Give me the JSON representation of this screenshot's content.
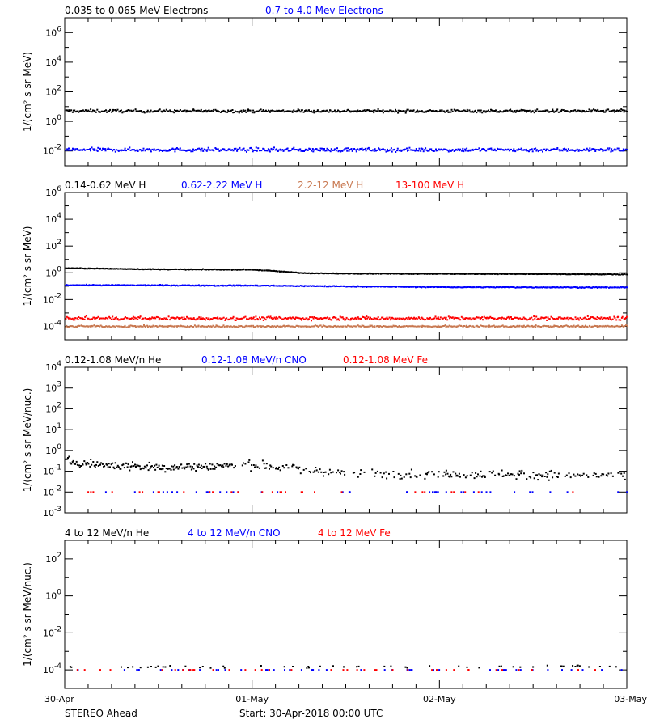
{
  "chart_data": [
    {
      "type": "scatter",
      "yscale": "log",
      "ylabel": "1/(cm² s sr MeV)",
      "ylim": [
        0.001,
        10000000
      ],
      "ytick_exponents": [
        -2,
        0,
        2,
        4,
        6
      ],
      "series": [
        {
          "name": "0.035 to 0.065 MeV Electrons",
          "color": "#000000",
          "level": 5,
          "scatter_dex": 0.12
        },
        {
          "name": "0.7 to 4.0 Mev Electrons",
          "color": "#0000ff",
          "level": 0.012,
          "scatter_dex": 0.15
        }
      ]
    },
    {
      "type": "scatter",
      "yscale": "log",
      "ylabel": "1/(cm² s sr MeV)",
      "ylim": [
        1e-05,
        1000000
      ],
      "ytick_exponents": [
        -4,
        -2,
        0,
        2,
        4,
        6
      ],
      "series": [
        {
          "name": "0.14-0.62 MeV H",
          "color": "#000000",
          "x": [
            0,
            0.5,
            1.0,
            1.3,
            1.8,
            2.5,
            3.0
          ],
          "y": [
            2.2,
            1.8,
            1.7,
            0.9,
            0.85,
            0.8,
            0.75
          ],
          "scatter_dex": 0.03
        },
        {
          "name": "0.62-2.22 MeV H",
          "color": "#0000ff",
          "x": [
            0,
            1.0,
            2.0,
            3.0
          ],
          "y": [
            0.12,
            0.11,
            0.085,
            0.08
          ],
          "scatter_dex": 0.04
        },
        {
          "name": "2.2-12 MeV H",
          "color": "#c87850",
          "level": 0.0001,
          "scatter_dex": 0.08
        },
        {
          "name": "13-100 MeV H",
          "color": "#ff0000",
          "level": 0.0004,
          "scatter_dex": 0.15
        }
      ]
    },
    {
      "type": "scatter",
      "yscale": "log",
      "ylabel": "1/(cm² s sr MeV/nuc.)",
      "ylim": [
        0.001,
        10000
      ],
      "ytick_exponents": [
        -3,
        -2,
        -1,
        0,
        1,
        2,
        3,
        4
      ],
      "series": [
        {
          "name": "0.12-1.08 MeV/n He",
          "color": "#000000",
          "x": [
            0,
            0.2,
            0.5,
            1.0,
            1.5,
            3.0
          ],
          "y": [
            0.3,
            0.2,
            0.15,
            0.2,
            0.08,
            0.06
          ],
          "scatter_dex": 0.25
        },
        {
          "name": "0.12-1.08 MeV/n CNO",
          "color": "#0000ff",
          "level": 0.01,
          "scatter_dex": 0.0
        },
        {
          "name": "0.12-1.08 MeV Fe",
          "color": "#ff0000",
          "level": 0.01,
          "scatter_dex": 0.0
        }
      ]
    },
    {
      "type": "scatter",
      "yscale": "log",
      "ylabel": "1/(cm² s sr MeV/nuc.)",
      "ylim": [
        1e-05,
        1000
      ],
      "ytick_exponents": [
        -4,
        -2,
        0,
        2
      ],
      "series": [
        {
          "name": "4 to 12 MeV/n He",
          "color": "#000000",
          "level": 0.00015,
          "scatter_dex": 0.1
        },
        {
          "name": "4 to 12 MeV/n CNO",
          "color": "#0000ff",
          "level": 0.0001,
          "scatter_dex": 0.0
        },
        {
          "name": "4 to 12 MeV Fe",
          "color": "#ff0000",
          "level": 0.0001,
          "scatter_dex": 0.0
        }
      ]
    }
  ],
  "x_axis": {
    "unit": "days",
    "xlim": [
      0,
      3
    ],
    "tick_labels": [
      "30-Apr",
      "01-May",
      "02-May",
      "03-May"
    ]
  },
  "footer": {
    "spacecraft": "STEREO Ahead",
    "start": "Start: 30-Apr-2018 00:00 UTC"
  }
}
